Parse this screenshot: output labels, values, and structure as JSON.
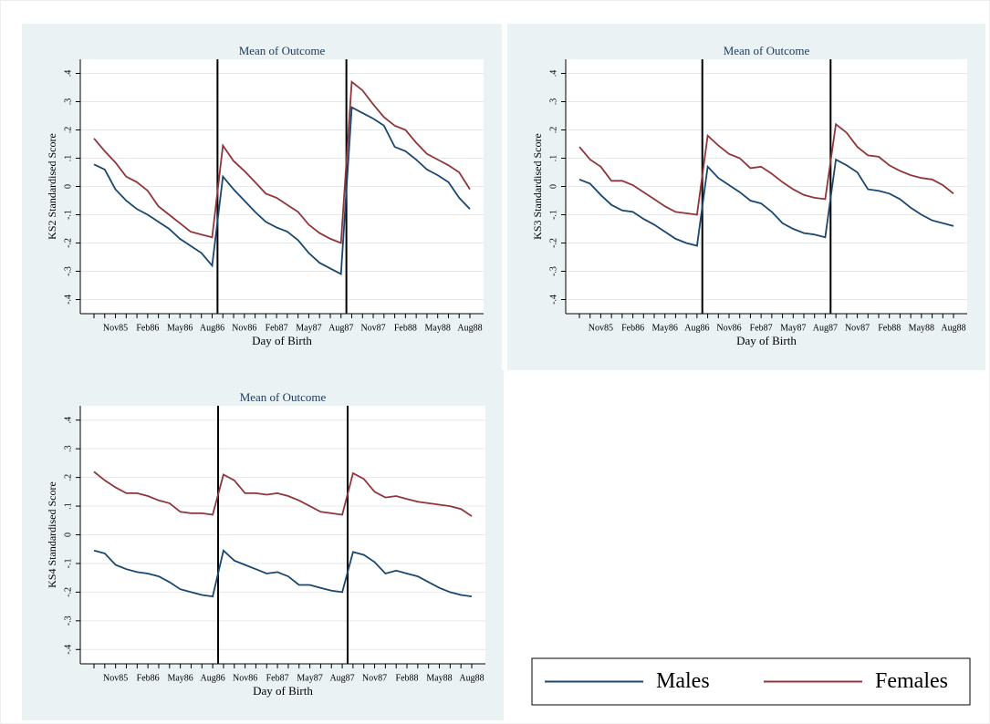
{
  "chart_data": [
    {
      "type": "line",
      "title": "Mean of Outcome",
      "xlabel": "Day of Birth",
      "ylabel": "KS2 Standardised Score",
      "categories": [
        null,
        null,
        "Nov85",
        null,
        null,
        "Feb86",
        null,
        null,
        "May86",
        null,
        null,
        "Aug86",
        null,
        null,
        "Nov86",
        null,
        null,
        "Feb87",
        null,
        null,
        "May87",
        null,
        null,
        "Aug87",
        null,
        null,
        "Nov87",
        null,
        null,
        "Feb88",
        null,
        null,
        "May88",
        null,
        null,
        "Aug88"
      ],
      "ylim": [
        -0.45,
        0.45
      ],
      "yticks": [
        {
          "value": -0.4,
          "label": "-.4"
        },
        {
          "value": -0.3,
          "label": "-.3"
        },
        {
          "value": -0.2,
          "label": "-.2"
        },
        {
          "value": -0.1,
          "label": "-.1"
        },
        0,
        {
          "value": 0.1,
          "label": ".1"
        },
        {
          "value": 0.2,
          "label": ".2"
        },
        {
          "value": 0.3,
          "label": ".3"
        },
        {
          "value": 0.4,
          "label": ".4"
        }
      ],
      "grid": true,
      "series": [
        {
          "name": "Males",
          "color": "#1a476f",
          "values": [
            0.078,
            0.06,
            -0.01,
            -0.05,
            -0.08,
            -0.1,
            -0.125,
            -0.15,
            -0.185,
            -0.21,
            -0.235,
            -0.28,
            0.035,
            -0.01,
            -0.05,
            -0.09,
            -0.125,
            -0.145,
            -0.16,
            -0.19,
            -0.235,
            -0.27,
            -0.29,
            -0.31,
            0.28,
            0.26,
            0.24,
            0.215,
            0.14,
            0.125,
            0.095,
            0.06,
            0.04,
            0.015,
            -0.04,
            -0.08
          ]
        },
        {
          "name": "Females",
          "color": "#90353b",
          "values": [
            0.17,
            0.125,
            0.085,
            0.035,
            0.015,
            -0.015,
            -0.07,
            -0.1,
            -0.13,
            -0.16,
            -0.17,
            -0.18,
            0.145,
            0.09,
            0.055,
            0.015,
            -0.025,
            -0.04,
            -0.065,
            -0.09,
            -0.135,
            -0.165,
            -0.185,
            -0.2,
            0.37,
            0.34,
            0.29,
            0.245,
            0.215,
            0.2,
            0.155,
            0.115,
            0.095,
            0.075,
            0.05,
            -0.01
          ]
        }
      ]
    },
    {
      "type": "line",
      "title": "Mean of Outcome",
      "xlabel": "Day of Birth",
      "ylabel": "KS3 Standardised Score",
      "categories": [
        null,
        null,
        "Nov85",
        null,
        null,
        "Feb86",
        null,
        null,
        "May86",
        null,
        null,
        "Aug86",
        null,
        null,
        "Nov86",
        null,
        null,
        "Feb87",
        null,
        null,
        "May87",
        null,
        null,
        "Aug87",
        null,
        null,
        "Nov87",
        null,
        null,
        "Feb88",
        null,
        null,
        "May88",
        null,
        null,
        "Aug88"
      ],
      "ylim": [
        -0.45,
        0.45
      ],
      "yticks": [
        {
          "value": -0.4,
          "label": "-.4"
        },
        {
          "value": -0.3,
          "label": "-.3"
        },
        {
          "value": -0.2,
          "label": "-.2"
        },
        {
          "value": -0.1,
          "label": "-.1"
        },
        0,
        {
          "value": 0.1,
          "label": ".1"
        },
        {
          "value": 0.2,
          "label": ".2"
        },
        {
          "value": 0.3,
          "label": ".3"
        },
        {
          "value": 0.4,
          "label": ".4"
        }
      ],
      "grid": true,
      "series": [
        {
          "name": "Males",
          "color": "#1a476f",
          "values": [
            0.025,
            0.01,
            -0.03,
            -0.065,
            -0.085,
            -0.09,
            -0.115,
            -0.135,
            -0.16,
            -0.185,
            -0.2,
            -0.21,
            0.07,
            0.03,
            0.005,
            -0.02,
            -0.05,
            -0.06,
            -0.09,
            -0.13,
            -0.15,
            -0.165,
            -0.17,
            -0.18,
            0.095,
            0.075,
            0.05,
            -0.01,
            -0.015,
            -0.025,
            -0.045,
            -0.075,
            -0.1,
            -0.12,
            -0.13,
            -0.14
          ]
        },
        {
          "name": "Females",
          "color": "#90353b",
          "values": [
            0.14,
            0.095,
            0.07,
            0.02,
            0.02,
            0.005,
            -0.02,
            -0.045,
            -0.07,
            -0.09,
            -0.095,
            -0.1,
            0.18,
            0.145,
            0.115,
            0.1,
            0.065,
            0.07,
            0.045,
            0.015,
            -0.01,
            -0.03,
            -0.04,
            -0.045,
            0.22,
            0.19,
            0.14,
            0.11,
            0.105,
            0.075,
            0.055,
            0.04,
            0.03,
            0.025,
            0.005,
            -0.025
          ]
        }
      ]
    },
    {
      "type": "line",
      "title": "Mean of Outcome",
      "xlabel": "Day of Birth",
      "ylabel": "KS4 Standardised Score",
      "categories": [
        null,
        null,
        "Nov85",
        null,
        null,
        "Feb86",
        null,
        null,
        "May86",
        null,
        null,
        "Aug86",
        null,
        null,
        "Nov86",
        null,
        null,
        "Feb87",
        null,
        null,
        "May87",
        null,
        null,
        "Aug87",
        null,
        null,
        "Nov87",
        null,
        null,
        "Feb88",
        null,
        null,
        "May88",
        null,
        null,
        "Aug88"
      ],
      "ylim": [
        -0.45,
        0.45
      ],
      "yticks": [
        {
          "value": -0.4,
          "label": "-.4"
        },
        {
          "value": -0.3,
          "label": "-.3"
        },
        {
          "value": -0.2,
          "label": "-.2"
        },
        {
          "value": -0.1,
          "label": "-.1"
        },
        0,
        {
          "value": 0.1,
          "label": ".1"
        },
        {
          "value": 0.2,
          "label": ".2"
        },
        {
          "value": 0.3,
          "label": ".3"
        },
        {
          "value": 0.4,
          "label": ".4"
        }
      ],
      "grid": true,
      "series": [
        {
          "name": "Males",
          "color": "#1a476f",
          "values": [
            -0.055,
            -0.065,
            -0.105,
            -0.12,
            -0.13,
            -0.135,
            -0.145,
            -0.165,
            -0.19,
            -0.2,
            -0.21,
            -0.215,
            -0.055,
            -0.09,
            -0.105,
            -0.12,
            -0.135,
            -0.13,
            -0.145,
            -0.175,
            -0.175,
            -0.185,
            -0.195,
            -0.2,
            -0.06,
            -0.07,
            -0.095,
            -0.135,
            -0.125,
            -0.135,
            -0.145,
            -0.165,
            -0.185,
            -0.2,
            -0.21,
            -0.215
          ]
        },
        {
          "name": "Females",
          "color": "#90353b",
          "values": [
            0.22,
            0.19,
            0.165,
            0.145,
            0.145,
            0.135,
            0.12,
            0.11,
            0.08,
            0.075,
            0.075,
            0.07,
            0.21,
            0.19,
            0.145,
            0.145,
            0.14,
            0.145,
            0.135,
            0.12,
            0.1,
            0.08,
            0.075,
            0.07,
            0.215,
            0.195,
            0.15,
            0.13,
            0.135,
            0.125,
            0.115,
            0.11,
            0.105,
            0.1,
            0.09,
            0.065
          ]
        }
      ]
    }
  ]
}
